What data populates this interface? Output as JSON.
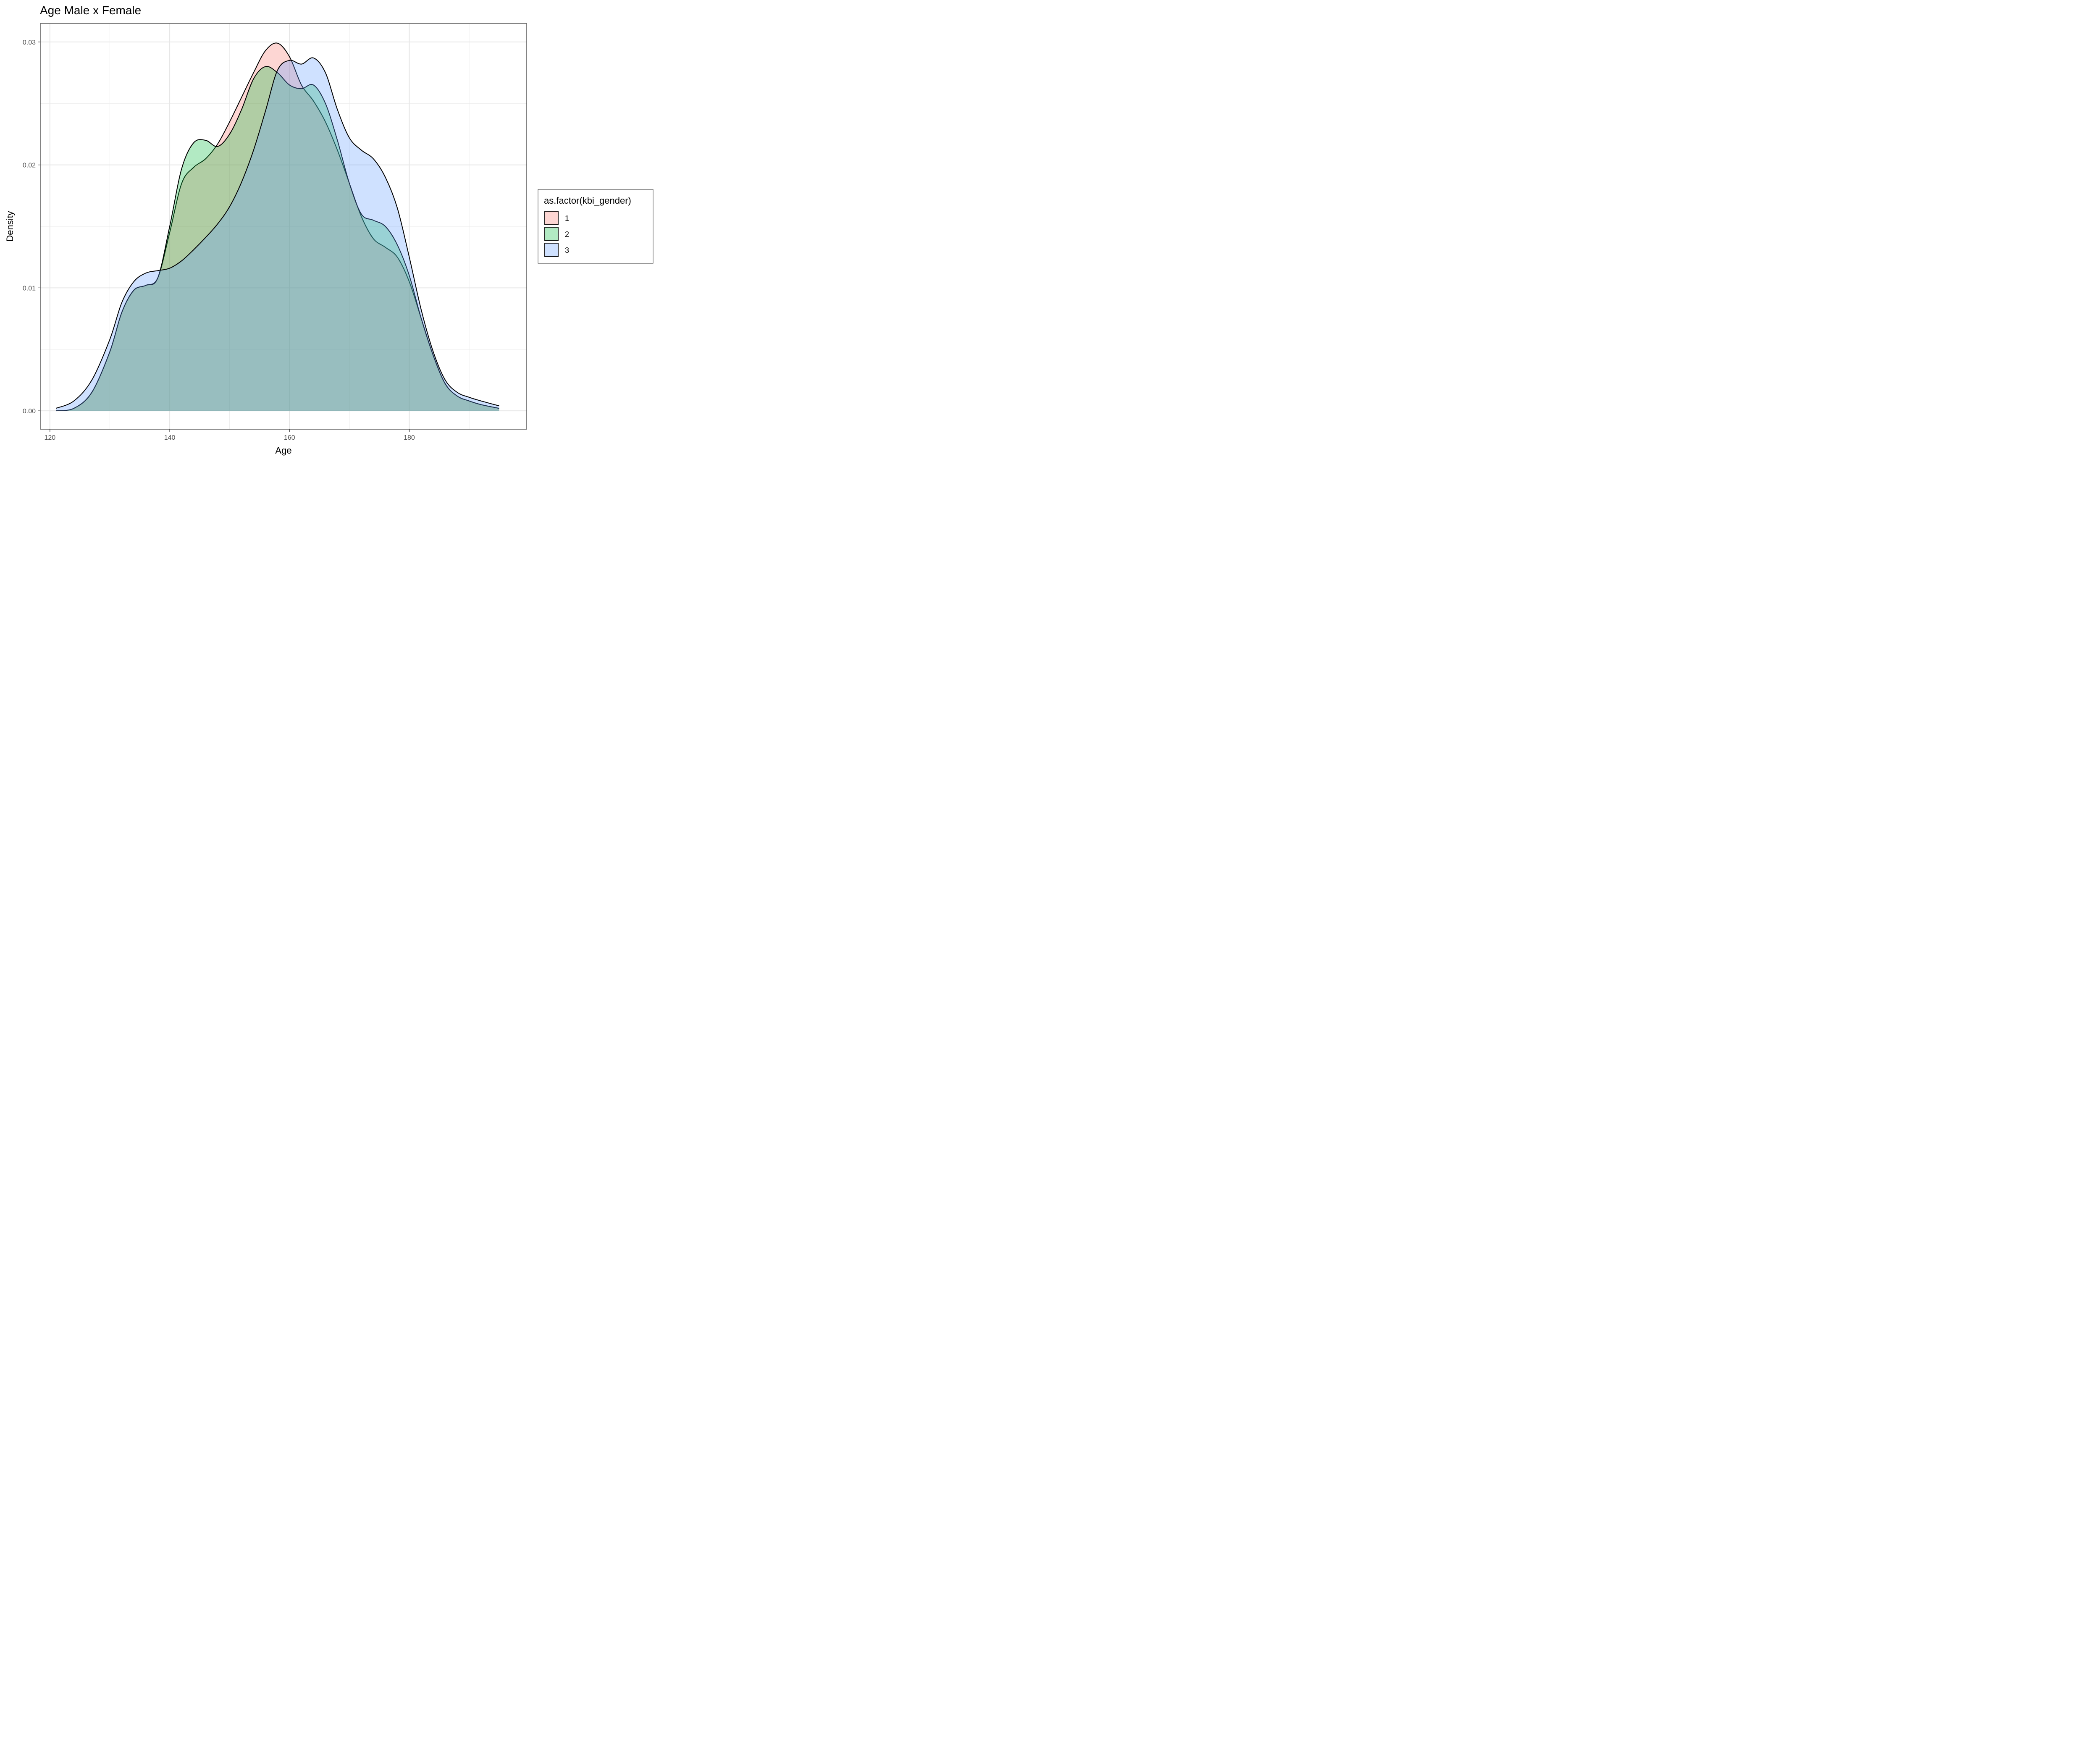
{
  "chart_data": {
    "type": "area",
    "title": "Age Male x Female",
    "xlabel": "Age",
    "ylabel": "Density",
    "xlim": [
      118.4,
      199.6
    ],
    "ylim": [
      -0.0015,
      0.0315
    ],
    "x_ticks": [
      120,
      140,
      160,
      180
    ],
    "x_tick_labels": [
      "120",
      "140",
      "160",
      "180"
    ],
    "y_ticks": [
      0.0,
      0.01,
      0.02,
      0.03
    ],
    "y_tick_labels": [
      "0.00",
      "0.01",
      "0.02",
      "0.03"
    ],
    "grid": true,
    "legend": {
      "title": "as.factor(kbi_gender)",
      "position": "right"
    },
    "series": [
      {
        "name": "1",
        "color": "#f8766d",
        "x": [
          121,
          124,
          127,
          130,
          132,
          134,
          136,
          138,
          140,
          142,
          144,
          146,
          148,
          150,
          152,
          154,
          156,
          158,
          160,
          162,
          164,
          166,
          168,
          170,
          172,
          174,
          176,
          178,
          180,
          182,
          184,
          186,
          188,
          190,
          192,
          195
        ],
        "y": [
          0.0,
          0.0002,
          0.0015,
          0.0048,
          0.008,
          0.0098,
          0.0102,
          0.0108,
          0.0145,
          0.0185,
          0.0198,
          0.0205,
          0.0217,
          0.0235,
          0.0255,
          0.0275,
          0.0293,
          0.0299,
          0.0288,
          0.0265,
          0.0252,
          0.0235,
          0.0212,
          0.0185,
          0.0158,
          0.014,
          0.0133,
          0.0125,
          0.0105,
          0.0075,
          0.0045,
          0.0022,
          0.0012,
          0.0008,
          0.0005,
          0.0002
        ]
      },
      {
        "name": "2",
        "color": "#00ba38",
        "x": [
          121,
          124,
          127,
          130,
          132,
          134,
          136,
          138,
          140,
          142,
          144,
          146,
          148,
          150,
          152,
          154,
          156,
          158,
          160,
          162,
          164,
          166,
          168,
          170,
          172,
          174,
          176,
          178,
          180,
          182,
          184,
          186,
          188,
          190,
          192,
          195
        ],
        "y": [
          0.0,
          0.0002,
          0.0015,
          0.0048,
          0.008,
          0.0098,
          0.0102,
          0.0108,
          0.015,
          0.0197,
          0.0218,
          0.022,
          0.0215,
          0.0225,
          0.0245,
          0.027,
          0.028,
          0.0275,
          0.0265,
          0.0262,
          0.0265,
          0.025,
          0.022,
          0.0185,
          0.016,
          0.0155,
          0.015,
          0.0135,
          0.011,
          0.0075,
          0.0045,
          0.0022,
          0.0012,
          0.0008,
          0.0005,
          0.0002
        ]
      },
      {
        "name": "3",
        "color": "#619cff",
        "x": [
          121,
          124,
          127,
          130,
          132,
          134,
          136,
          138,
          140,
          142,
          144,
          146,
          148,
          150,
          152,
          154,
          156,
          158,
          160,
          162,
          164,
          166,
          168,
          170,
          172,
          174,
          176,
          178,
          180,
          182,
          184,
          186,
          188,
          190,
          192,
          195
        ],
        "y": [
          0.0002,
          0.0008,
          0.0025,
          0.0058,
          0.0088,
          0.0105,
          0.0112,
          0.0114,
          0.0116,
          0.0122,
          0.0131,
          0.0141,
          0.0152,
          0.0166,
          0.0186,
          0.0212,
          0.0244,
          0.0277,
          0.0285,
          0.0282,
          0.0287,
          0.0275,
          0.0245,
          0.0222,
          0.0212,
          0.0205,
          0.019,
          0.0165,
          0.0125,
          0.0082,
          0.0048,
          0.0025,
          0.0015,
          0.0011,
          0.0008,
          0.0004
        ]
      }
    ]
  }
}
